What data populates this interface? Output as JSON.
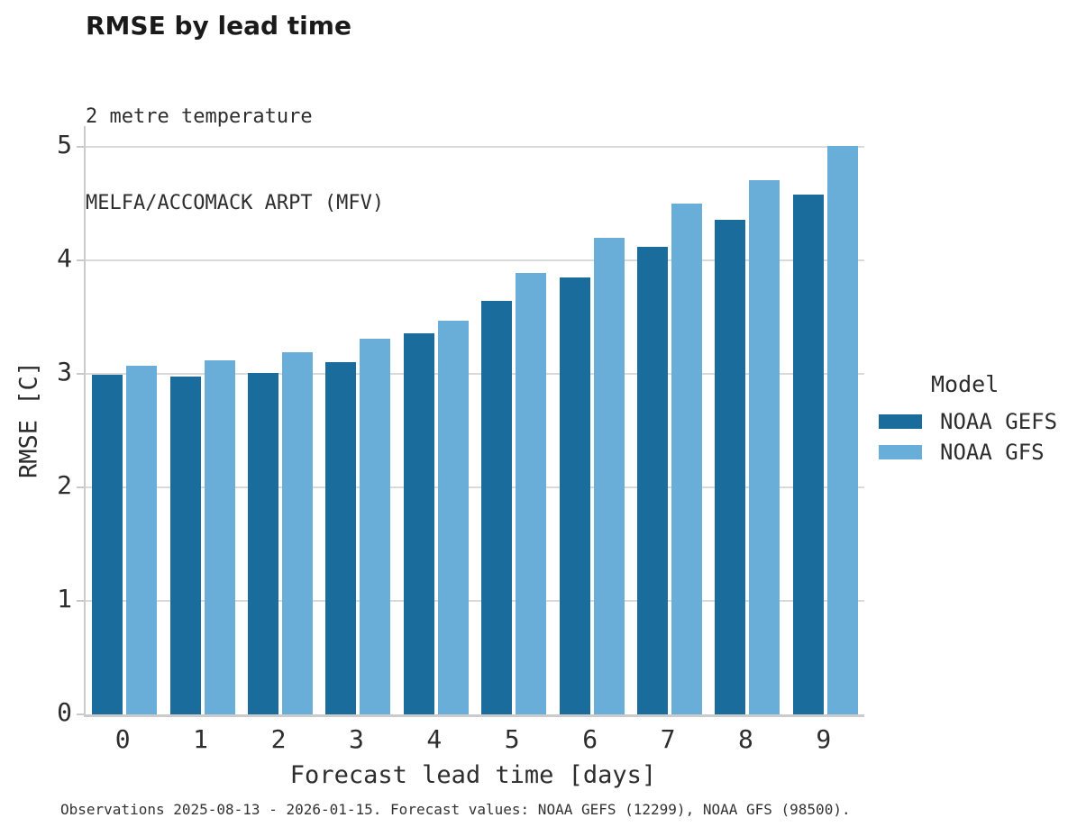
{
  "header": {
    "title": "RMSE by lead time",
    "subtitle_lines": [
      "2 metre temperature",
      "MELFA/ACCOMACK ARPT (MFV)"
    ]
  },
  "legend": {
    "title": "Model",
    "entries": [
      {
        "label": "NOAA GEFS",
        "color": "#1A6C9C"
      },
      {
        "label": "NOAA GFS",
        "color": "#69AED8"
      }
    ]
  },
  "footer": {
    "text": "Observations 2025-08-13 - 2026-01-15. Forecast values: NOAA GEFS (12299), NOAA GFS (98500)."
  },
  "colors": {
    "gefs_bar": "#1A6C9C",
    "gfs_bar": "#69AED8",
    "gridline": "#DADADA",
    "axis_spine": "#CBCBCB",
    "text": "#2D2D2D"
  },
  "chart_data": {
    "type": "bar",
    "title": "RMSE by lead time",
    "subtitle": "2 metre temperature / MELFA/ACCOMACK ARPT (MFV)",
    "categories": [
      0,
      1,
      2,
      3,
      4,
      5,
      6,
      7,
      8,
      9
    ],
    "series": [
      {
        "name": "NOAA GEFS",
        "color": "#1A6C9C",
        "values": [
          2.99,
          2.98,
          3.01,
          3.1,
          3.36,
          3.64,
          3.85,
          4.12,
          4.36,
          4.58
        ]
      },
      {
        "name": "NOAA GFS",
        "color": "#69AED8",
        "values": [
          3.07,
          3.12,
          3.19,
          3.31,
          3.47,
          3.89,
          4.2,
          4.5,
          4.71,
          5.01
        ]
      }
    ],
    "xlabel": "Forecast lead time [days]",
    "ylabel": "RMSE [C]",
    "ylim": [
      0,
      5
    ],
    "yticks": [
      0,
      1,
      2,
      3,
      4,
      5
    ],
    "grid": true,
    "legend_title": "Model",
    "legend_position": "right"
  }
}
